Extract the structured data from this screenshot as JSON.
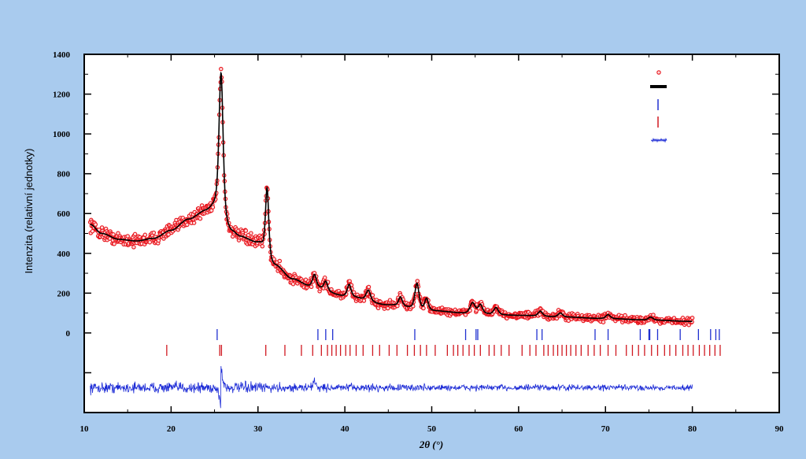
{
  "chart_data": {
    "type": "scatter",
    "title": "",
    "xlabel": "2θ (°)",
    "ylabel": "Intenzita (relativní jednotky)",
    "xlim": [
      10,
      90
    ],
    "ylim": [
      -400,
      1400
    ],
    "x_ticks": [
      10,
      20,
      30,
      40,
      50,
      60,
      70,
      80,
      90
    ],
    "y_ticks": [
      {
        "value": 0,
        "label": "0"
      },
      {
        "value": 200,
        "label": "200"
      },
      {
        "value": 400,
        "label": "400"
      },
      {
        "value": 600,
        "label": "600"
      },
      {
        "value": 800,
        "label": "800"
      },
      {
        "value": 1000,
        "label": "1000"
      },
      {
        "value": 1200,
        "label": "1200"
      },
      {
        "value": 1400,
        "label": "1400"
      }
    ],
    "legend_position": "top-right",
    "grid": false,
    "observed_color": "#e8141c",
    "calculated_color": "#000000",
    "phase1_color": "#2030d0",
    "phase2_color": "#d01820",
    "difference_color": "#1c2bd6",
    "background": {
      "x": [
        10.7,
        12,
        14,
        16,
        18,
        20,
        22,
        24,
        25,
        27,
        28,
        30,
        32,
        34,
        36,
        40,
        45,
        50,
        55,
        60,
        65,
        70,
        75,
        80
      ],
      "y": [
        545,
        500,
        470,
        462,
        475,
        515,
        570,
        610,
        625,
        500,
        480,
        450,
        335,
        270,
        235,
        185,
        140,
        110,
        95,
        88,
        80,
        72,
        65,
        58
      ]
    },
    "peaks": [
      {
        "x": 25.75,
        "height": 720,
        "width": 0.28
      },
      {
        "x": 31.05,
        "height": 340,
        "width": 0.22
      },
      {
        "x": 36.5,
        "height": 60,
        "width": 0.25
      },
      {
        "x": 37.8,
        "height": 45,
        "width": 0.25
      },
      {
        "x": 40.5,
        "height": 60,
        "width": 0.25
      },
      {
        "x": 42.7,
        "height": 55,
        "width": 0.3
      },
      {
        "x": 46.4,
        "height": 45,
        "width": 0.25
      },
      {
        "x": 48.3,
        "height": 130,
        "width": 0.28
      },
      {
        "x": 49.4,
        "height": 60,
        "width": 0.25
      },
      {
        "x": 54.7,
        "height": 55,
        "width": 0.35
      },
      {
        "x": 55.6,
        "height": 45,
        "width": 0.3
      },
      {
        "x": 57.4,
        "height": 35,
        "width": 0.3
      },
      {
        "x": 62.5,
        "height": 25,
        "width": 0.3
      },
      {
        "x": 64.8,
        "height": 20,
        "width": 0.3
      },
      {
        "x": 70.3,
        "height": 20,
        "width": 0.3
      },
      {
        "x": 75.2,
        "height": 15,
        "width": 0.3
      }
    ],
    "phase1_reflections": [
      25.3,
      36.9,
      37.8,
      38.6,
      48.05,
      53.9,
      55.1,
      55.3,
      62.1,
      62.7,
      68.8,
      70.3,
      74.0,
      75.0,
      75.1,
      76.0,
      78.6,
      80.7,
      82.1,
      82.7,
      83.1
    ],
    "phase2_reflections": [
      19.5,
      25.6,
      25.8,
      30.9,
      33.1,
      35.0,
      36.3,
      37.3,
      38.0,
      38.5,
      39.0,
      39.5,
      40.1,
      40.6,
      41.3,
      42.1,
      43.2,
      44.0,
      45.1,
      46.0,
      47.2,
      48.0,
      48.7,
      49.4,
      50.4,
      51.8,
      52.5,
      53.0,
      53.6,
      54.3,
      54.9,
      55.6,
      56.6,
      57.2,
      58.0,
      58.9,
      60.4,
      61.3,
      62.0,
      62.9,
      63.4,
      64.0,
      64.5,
      65.0,
      65.5,
      66.0,
      66.6,
      67.2,
      68.0,
      68.7,
      69.4,
      70.3,
      71.2,
      72.4,
      73.1,
      73.8,
      74.5,
      75.3,
      76.0,
      76.8,
      77.4,
      78.1,
      78.9,
      79.5,
      80.1,
      80.8,
      81.4,
      82.0,
      82.6,
      83.2
    ]
  }
}
